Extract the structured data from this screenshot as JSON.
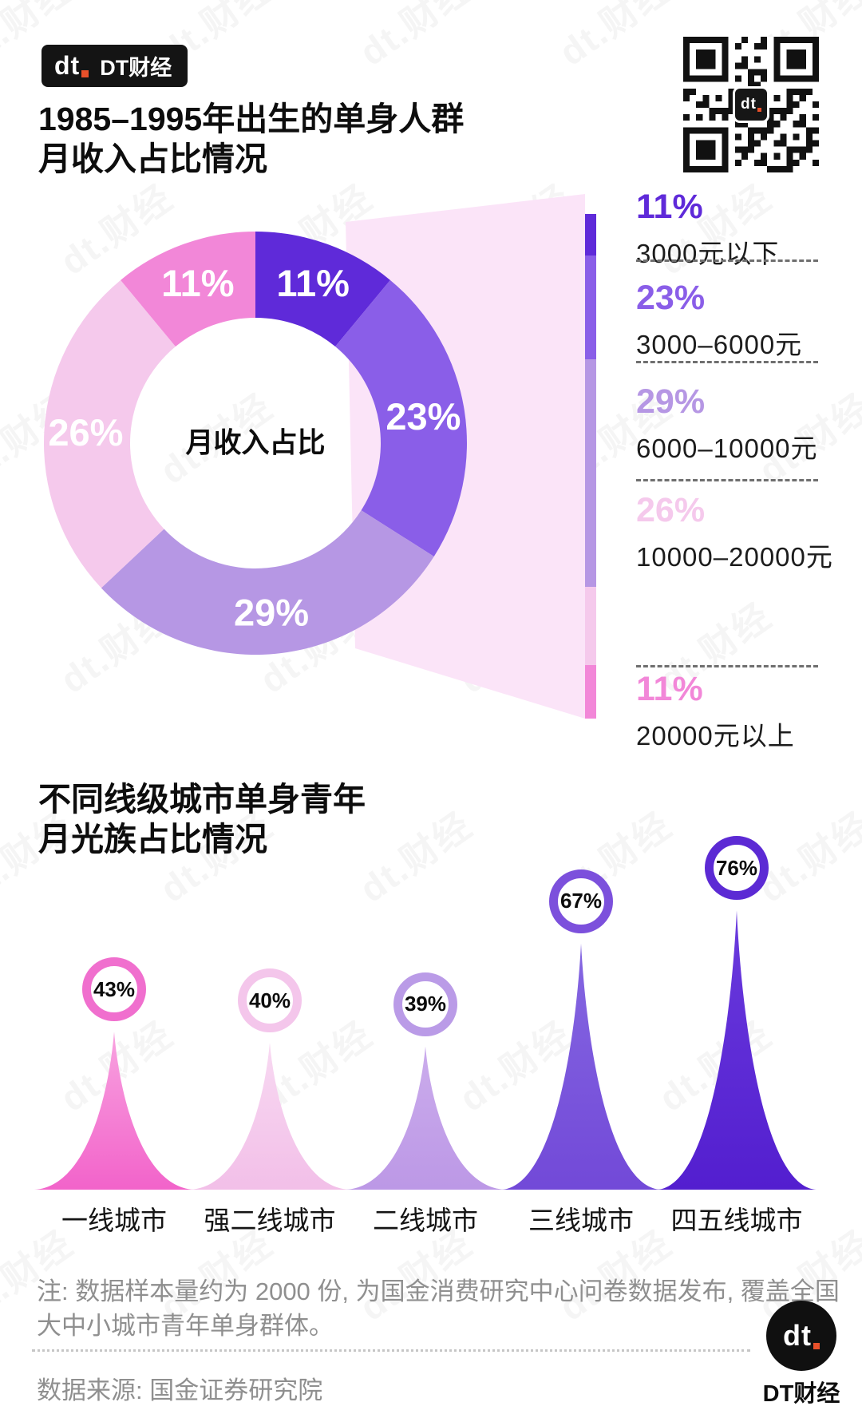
{
  "watermark_text": "dt.财经",
  "header": {
    "logo_badge": {
      "mark": "dt",
      "name": "DT财经"
    },
    "qr": {
      "center_mark": "dt"
    }
  },
  "section1": {
    "title_line1": "1985–1995年出生的单身人群",
    "title_line2": "月收入占比情况"
  },
  "section2": {
    "title_line1": "不同线级城市单身青年",
    "title_line2": "月光族占比情况"
  },
  "chart_data": [
    {
      "type": "pie",
      "subtype": "donut",
      "title": "1985–1995年出生的单身人群月收入占比情况",
      "center_label": "月收入占比",
      "legend_position": "right",
      "segments": [
        {
          "label": "3000元以下",
          "value": 11,
          "value_text": "11%",
          "color": "#5F2AD9"
        },
        {
          "label": "3000–6000元",
          "value": 23,
          "value_text": "23%",
          "color": "#8A5EE8"
        },
        {
          "label": "6000–10000元",
          "value": 29,
          "value_text": "29%",
          "color": "#B697E4"
        },
        {
          "label": "10000–20000元",
          "value": 26,
          "value_text": "26%",
          "color": "#F5C9EC"
        },
        {
          "label": "20000元以上",
          "value": 11,
          "value_text": "11%",
          "color": "#F287D8"
        }
      ]
    },
    {
      "type": "area",
      "subtype": "peaks",
      "title": "不同线级城市单身青年月光族占比情况",
      "categories": [
        "一线城市",
        "强二线城市",
        "二线城市",
        "三线城市",
        "四五线城市"
      ],
      "values": [
        43,
        40,
        39,
        67,
        76
      ],
      "value_texts": [
        "43%",
        "40%",
        "39%",
        "67%",
        "76%"
      ],
      "ring_colors": [
        "#F06FCE",
        "#F4C6EB",
        "#BA9BE7",
        "#7C50DC",
        "#5C2AD4"
      ],
      "gradients": [
        [
          "#F8A3E0",
          "#F263CA"
        ],
        [
          "#F8D9F2",
          "#F2BFE8"
        ],
        [
          "#CBACEC",
          "#BC98E6"
        ],
        [
          "#8567E1",
          "#7249D8"
        ],
        [
          "#6A3BDD",
          "#531ECF"
        ]
      ],
      "ylim": [
        0,
        100
      ]
    }
  ],
  "footer": {
    "note_line1": "注: 数据样本量约为 2000 份, 为国金消费研究中心问卷数据发布, 覆盖全国",
    "note_line2": "大中小城市青年单身群体。",
    "source": "数据来源: 国金证券研究院",
    "logo_mark": "dt",
    "logo_name": "DT财经"
  }
}
